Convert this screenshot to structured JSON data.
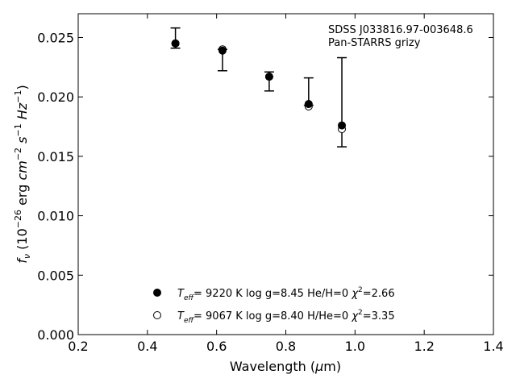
{
  "chart_data": {
    "type": "scatter",
    "xlabel": "Wavelength (μm)",
    "ylabel": "f_ν (10^-26 erg cm^-2 s^-1 Hz^-1)",
    "xlim": [
      0.2,
      1.4
    ],
    "ylim": [
      0.0,
      0.027
    ],
    "xticks": [
      "0.2",
      "0.4",
      "0.6",
      "0.8",
      "1.0",
      "1.2",
      "1.4"
    ],
    "yticks": [
      "0.000",
      "0.005",
      "0.010",
      "0.015",
      "0.020",
      "0.025"
    ],
    "xtick_values": [
      0.2,
      0.4,
      0.6,
      0.8,
      1.0,
      1.2,
      1.4
    ],
    "ytick_values": [
      0.0,
      0.005,
      0.01,
      0.015,
      0.02,
      0.025
    ],
    "grid": false,
    "annotation": [
      "SDSS J033816.97-003648.6",
      "Pan-STARRS grizy"
    ],
    "observed": {
      "x": [
        0.481,
        0.617,
        0.752,
        0.866,
        0.962
      ],
      "y": [
        0.0245,
        0.024,
        0.0213,
        0.0194,
        0.0175
      ],
      "err_low": [
        0.0241,
        0.0222,
        0.0205,
        0.0193,
        0.0158
      ],
      "err_high": [
        0.0258,
        0.024,
        0.0221,
        0.0216,
        0.0233
      ]
    },
    "series": [
      {
        "name": "Teff= 9220 K log g=8.45 He/H=0 χ²=2.66",
        "marker": "filled-circle",
        "x": [
          0.481,
          0.617,
          0.752,
          0.866,
          0.962
        ],
        "y": [
          0.0245,
          0.0239,
          0.0217,
          0.0194,
          0.0176
        ]
      },
      {
        "name": "Teff= 9067 K log g=8.40 H/He=0 χ²=3.35",
        "marker": "open-circle",
        "x": [
          0.481,
          0.617,
          0.752,
          0.866,
          0.962
        ],
        "y": [
          0.0245,
          0.024,
          0.0217,
          0.0192,
          0.0173
        ]
      }
    ],
    "legend": {
      "placement": "lower-center",
      "entries": [
        {
          "teff_label": "T",
          "teff_sub": "eff",
          "text": "=  9220 K  log g=8.45  He/H=0",
          "chi": "χ",
          "chi_val": "=2.66"
        },
        {
          "teff_label": "T",
          "teff_sub": "eff",
          "text": "=  9067 K  log g=8.40  H/He=0",
          "chi": "χ",
          "chi_val": "=3.35"
        }
      ]
    }
  }
}
